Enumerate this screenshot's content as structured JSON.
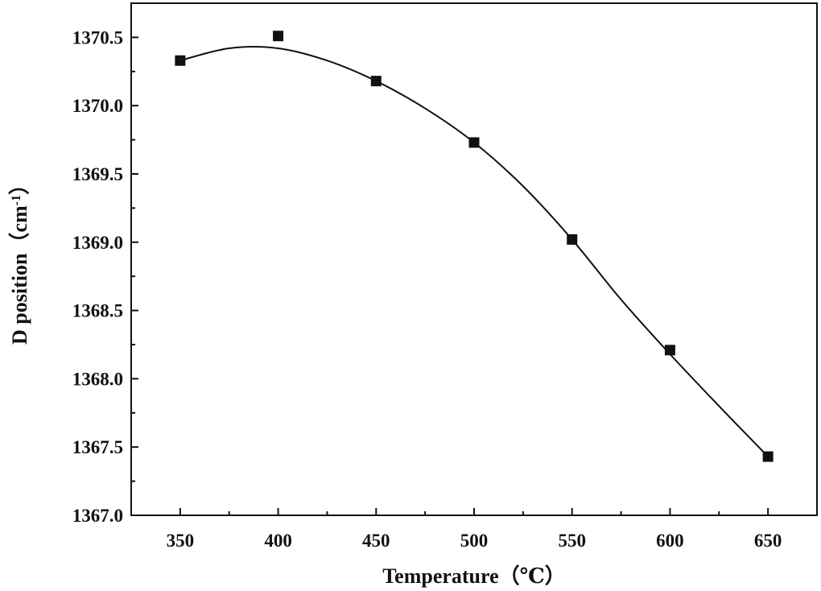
{
  "chart_data": {
    "type": "scatter",
    "title": "",
    "xlabel": "Temperature（℃）",
    "ylabel_main": "D position（cm",
    "ylabel_sup": "-1",
    "ylabel_end": "）",
    "xlim": [
      325,
      675
    ],
    "ylim": [
      1367.0,
      1370.75
    ],
    "x_ticks": [
      350,
      400,
      450,
      500,
      550,
      600,
      650
    ],
    "x_tick_labels": [
      "350",
      "400",
      "450",
      "500",
      "550",
      "600",
      "650"
    ],
    "y_ticks": [
      1367.0,
      1367.5,
      1368.0,
      1368.5,
      1369.0,
      1369.5,
      1370.0,
      1370.5
    ],
    "y_tick_labels": [
      "1367.0",
      "1367.5",
      "1368.0",
      "1368.5",
      "1369.0",
      "1369.5",
      "1370.0",
      "1370.5"
    ],
    "grid": false,
    "series": [
      {
        "marker": "square",
        "color": "#111111",
        "x": [
          350,
          400,
          450,
          500,
          550,
          600,
          650
        ],
        "y": [
          1370.33,
          1370.51,
          1370.18,
          1369.73,
          1369.02,
          1368.21,
          1367.43
        ]
      }
    ],
    "fit_curve": {
      "color": "#111111",
      "x": [
        350,
        375,
        400,
        425,
        450,
        475,
        500,
        525,
        550,
        575,
        600,
        625,
        650
      ],
      "y": [
        1370.33,
        1370.42,
        1370.42,
        1370.33,
        1370.18,
        1369.98,
        1369.73,
        1369.41,
        1369.02,
        1368.58,
        1368.18,
        1367.8,
        1367.43
      ]
    }
  }
}
